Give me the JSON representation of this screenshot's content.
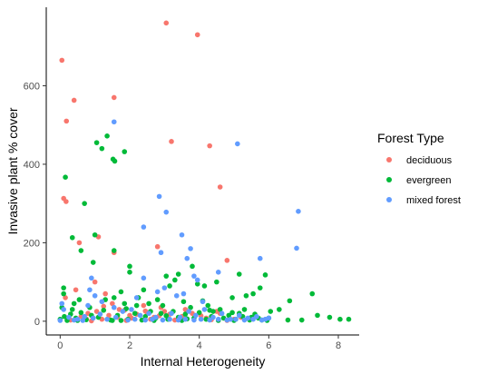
{
  "chart_data": {
    "type": "scatter",
    "xlabel": "Internal Heterogeneity",
    "ylabel": "Invasive plant % cover",
    "xlim": [
      -0.4,
      8.6
    ],
    "ylim": [
      -35,
      800
    ],
    "x_ticks": [
      0,
      2,
      4,
      6,
      8
    ],
    "y_ticks": [
      0,
      200,
      400,
      600
    ],
    "grid": false,
    "legend": {
      "title": "Forest Type",
      "placement": "right",
      "entries": [
        "deciduous",
        "evergreen",
        "mixed forest"
      ]
    },
    "colors": {
      "deciduous": "#F8766D",
      "evergreen": "#00BA38",
      "mixed forest": "#619CFF"
    },
    "series": [
      {
        "name": "deciduous",
        "points": [
          [
            0.05,
            665
          ],
          [
            0.4,
            563
          ],
          [
            1.55,
            570
          ],
          [
            0.18,
            510
          ],
          [
            3.05,
            760
          ],
          [
            3.95,
            730
          ],
          [
            3.2,
            458
          ],
          [
            4.3,
            447
          ],
          [
            4.6,
            342
          ],
          [
            0.1,
            313
          ],
          [
            0.17,
            305
          ],
          [
            1.1,
            215
          ],
          [
            0.55,
            200
          ],
          [
            1.55,
            175
          ],
          [
            2.8,
            190
          ],
          [
            4.8,
            155
          ],
          [
            1.0,
            100
          ],
          [
            0.45,
            80
          ],
          [
            0.15,
            60
          ],
          [
            1.3,
            70
          ],
          [
            2.4,
            40
          ],
          [
            3.0,
            25
          ],
          [
            4.6,
            20
          ],
          [
            5.2,
            10
          ],
          [
            2.0,
            15
          ],
          [
            1.7,
            30
          ],
          [
            0.8,
            20
          ],
          [
            3.5,
            12
          ],
          [
            4.2,
            8
          ],
          [
            1.2,
            5
          ],
          [
            2.6,
            5
          ],
          [
            0.3,
            3
          ],
          [
            1.9,
            2
          ],
          [
            3.3,
            3
          ],
          [
            4.8,
            2
          ],
          [
            0.9,
            1
          ],
          [
            2.2,
            18
          ],
          [
            2.9,
            35
          ],
          [
            1.5,
            45
          ],
          [
            3.8,
            20
          ],
          [
            0.6,
            12
          ],
          [
            4.5,
            25
          ],
          [
            2.5,
            22
          ],
          [
            1.4,
            15
          ],
          [
            3.6,
            30
          ],
          [
            2.7,
            10
          ],
          [
            0.2,
            8
          ],
          [
            5.0,
            5
          ],
          [
            1.85,
            28
          ],
          [
            3.15,
            18
          ],
          [
            2.05,
            8
          ],
          [
            4.05,
            14
          ],
          [
            1.25,
            38
          ],
          [
            2.45,
            26
          ],
          [
            0.75,
            6
          ],
          [
            3.45,
            9
          ],
          [
            1.05,
            25
          ],
          [
            4.35,
            4
          ],
          [
            2.85,
            14
          ],
          [
            1.65,
            10
          ]
        ]
      },
      {
        "name": "evergreen",
        "points": [
          [
            1.35,
            472
          ],
          [
            1.05,
            455
          ],
          [
            1.2,
            440
          ],
          [
            1.85,
            432
          ],
          [
            1.52,
            413
          ],
          [
            1.57,
            408
          ],
          [
            0.15,
            367
          ],
          [
            0.7,
            300
          ],
          [
            0.35,
            213
          ],
          [
            1.0,
            220
          ],
          [
            0.6,
            180
          ],
          [
            1.55,
            180
          ],
          [
            0.95,
            150
          ],
          [
            2.0,
            140
          ],
          [
            3.8,
            140
          ],
          [
            3.4,
            120
          ],
          [
            3.3,
            105
          ],
          [
            3.15,
            90
          ],
          [
            2.0,
            125
          ],
          [
            3.05,
            115
          ],
          [
            5.15,
            120
          ],
          [
            5.9,
            118
          ],
          [
            4.5,
            100
          ],
          [
            3.95,
            95
          ],
          [
            4.15,
            90
          ],
          [
            5.75,
            85
          ],
          [
            5.55,
            70
          ],
          [
            5.35,
            65
          ],
          [
            4.95,
            60
          ],
          [
            7.25,
            70
          ],
          [
            6.6,
            52
          ],
          [
            6.3,
            30
          ],
          [
            6.05,
            25
          ],
          [
            0.1,
            85
          ],
          [
            0.1,
            70
          ],
          [
            0.55,
            55
          ],
          [
            0.4,
            45
          ],
          [
            0.05,
            35
          ],
          [
            0.35,
            30
          ],
          [
            1.3,
            55
          ],
          [
            1.55,
            60
          ],
          [
            1.75,
            75
          ],
          [
            1.85,
            45
          ],
          [
            2.25,
            60
          ],
          [
            2.55,
            45
          ],
          [
            2.4,
            80
          ],
          [
            2.8,
            55
          ],
          [
            2.95,
            40
          ],
          [
            3.55,
            50
          ],
          [
            3.75,
            35
          ],
          [
            4.25,
            40
          ],
          [
            4.4,
            25
          ],
          [
            5.3,
            30
          ],
          [
            5.15,
            20
          ],
          [
            7.4,
            15
          ],
          [
            7.75,
            10
          ],
          [
            8.05,
            5
          ],
          [
            8.3,
            5
          ],
          [
            6.95,
            3
          ],
          [
            6.55,
            3
          ],
          [
            6.0,
            8
          ],
          [
            5.7,
            8
          ],
          [
            0.0,
            5
          ],
          [
            0.2,
            2
          ],
          [
            0.45,
            8
          ],
          [
            0.75,
            4
          ],
          [
            0.9,
            15
          ],
          [
            1.1,
            10
          ],
          [
            1.45,
            3
          ],
          [
            1.65,
            15
          ],
          [
            1.95,
            5
          ],
          [
            2.15,
            20
          ],
          [
            2.35,
            3
          ],
          [
            2.6,
            25
          ],
          [
            2.75,
            8
          ],
          [
            2.9,
            20
          ],
          [
            3.1,
            5
          ],
          [
            3.25,
            25
          ],
          [
            3.4,
            10
          ],
          [
            3.6,
            18
          ],
          [
            3.85,
            8
          ],
          [
            4.0,
            22
          ],
          [
            4.2,
            5
          ],
          [
            4.35,
            12
          ],
          [
            4.6,
            30
          ],
          [
            4.7,
            8
          ],
          [
            4.85,
            15
          ],
          [
            5.05,
            5
          ],
          [
            5.25,
            12
          ],
          [
            5.45,
            3
          ],
          [
            5.6,
            18
          ],
          [
            5.8,
            3
          ],
          [
            0.3,
            18
          ],
          [
            0.6,
            22
          ],
          [
            1.25,
            28
          ],
          [
            1.9,
            32
          ],
          [
            2.45,
            12
          ],
          [
            3.05,
            14
          ],
          [
            3.65,
            6
          ],
          [
            4.3,
            28
          ],
          [
            4.95,
            22
          ],
          [
            5.5,
            10
          ],
          [
            0.12,
            12
          ],
          [
            0.85,
            35
          ],
          [
            1.75,
            2
          ],
          [
            2.2,
            40
          ],
          [
            2.7,
            2
          ],
          [
            3.5,
            2
          ],
          [
            4.1,
            52
          ],
          [
            4.55,
            2
          ],
          [
            5.0,
            2
          ],
          [
            5.95,
            2
          ],
          [
            0.5,
            2
          ],
          [
            1.5,
            2
          ]
        ]
      },
      {
        "name": "mixed forest",
        "points": [
          [
            1.55,
            508
          ],
          [
            5.1,
            452
          ],
          [
            2.85,
            318
          ],
          [
            3.05,
            278
          ],
          [
            6.85,
            280
          ],
          [
            2.4,
            240
          ],
          [
            3.5,
            220
          ],
          [
            2.9,
            175
          ],
          [
            3.75,
            185
          ],
          [
            5.75,
            160
          ],
          [
            6.8,
            186
          ],
          [
            3.65,
            160
          ],
          [
            4.55,
            125
          ],
          [
            2.4,
            110
          ],
          [
            3.95,
            105
          ],
          [
            3.85,
            115
          ],
          [
            2.8,
            75
          ],
          [
            3.0,
            85
          ],
          [
            2.2,
            60
          ],
          [
            3.35,
            65
          ],
          [
            0.85,
            80
          ],
          [
            1.0,
            65
          ],
          [
            0.8,
            40
          ],
          [
            1.2,
            50
          ],
          [
            0.05,
            45
          ],
          [
            0.1,
            30
          ],
          [
            1.55,
            35
          ],
          [
            1.8,
            25
          ],
          [
            2.05,
            30
          ],
          [
            2.3,
            15
          ],
          [
            2.55,
            20
          ],
          [
            2.75,
            10
          ],
          [
            3.2,
            20
          ],
          [
            3.45,
            10
          ],
          [
            3.7,
            25
          ],
          [
            3.9,
            15
          ],
          [
            4.15,
            30
          ],
          [
            4.4,
            10
          ],
          [
            4.65,
            20
          ],
          [
            4.9,
            5
          ],
          [
            5.15,
            15
          ],
          [
            5.4,
            8
          ],
          [
            5.65,
            12
          ],
          [
            5.9,
            5
          ],
          [
            6.0,
            8
          ],
          [
            0.25,
            10
          ],
          [
            0.5,
            5
          ],
          [
            0.7,
            12
          ],
          [
            0.95,
            8
          ],
          [
            1.15,
            18
          ],
          [
            1.35,
            5
          ],
          [
            1.6,
            10
          ],
          [
            1.95,
            3
          ],
          [
            2.15,
            5
          ],
          [
            2.45,
            3
          ],
          [
            2.65,
            5
          ],
          [
            2.95,
            3
          ],
          [
            3.15,
            5
          ],
          [
            3.4,
            3
          ],
          [
            3.6,
            5
          ],
          [
            3.85,
            3
          ],
          [
            4.05,
            5
          ],
          [
            4.3,
            3
          ],
          [
            4.55,
            5
          ],
          [
            4.8,
            3
          ],
          [
            5.05,
            5
          ],
          [
            5.3,
            3
          ],
          [
            5.55,
            5
          ],
          [
            5.8,
            3
          ],
          [
            0.0,
            2
          ],
          [
            0.4,
            3
          ],
          [
            0.65,
            2
          ],
          [
            3.55,
            70
          ],
          [
            4.1,
            50
          ],
          [
            0.9,
            110
          ]
        ]
      }
    ]
  }
}
